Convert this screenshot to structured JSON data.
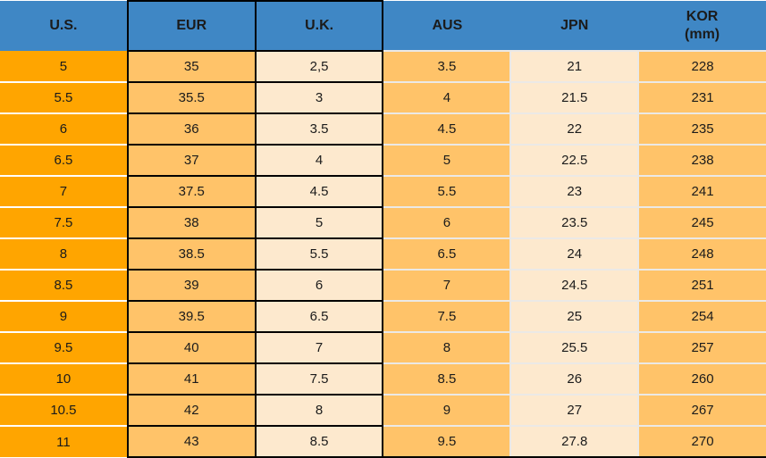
{
  "colors": {
    "header_bg": "#3F87C5",
    "us_col_bg": "#FFA500",
    "mid_orange_bg": "#FFC369",
    "cream_bg": "#FDE9CE",
    "grid_line": "#EBE9E6",
    "border_black": "#000000"
  },
  "table": {
    "columns": [
      {
        "key": "us",
        "label": "U.S."
      },
      {
        "key": "eur",
        "label": "EUR"
      },
      {
        "key": "uk",
        "label": "U.K."
      },
      {
        "key": "aus",
        "label": "AUS"
      },
      {
        "key": "jpn",
        "label": "JPN"
      },
      {
        "key": "kor",
        "label": "KOR\n(mm)"
      }
    ],
    "rows": [
      {
        "us": "5",
        "eur": "35",
        "uk": "2,5",
        "aus": "3.5",
        "jpn": "21",
        "kor": "228"
      },
      {
        "us": "5.5",
        "eur": "35.5",
        "uk": "3",
        "aus": "4",
        "jpn": "21.5",
        "kor": "231"
      },
      {
        "us": "6",
        "eur": "36",
        "uk": "3.5",
        "aus": "4.5",
        "jpn": "22",
        "kor": "235"
      },
      {
        "us": "6.5",
        "eur": "37",
        "uk": "4",
        "aus": "5",
        "jpn": "22.5",
        "kor": "238"
      },
      {
        "us": "7",
        "eur": "37.5",
        "uk": "4.5",
        "aus": "5.5",
        "jpn": "23",
        "kor": "241"
      },
      {
        "us": "7.5",
        "eur": "38",
        "uk": "5",
        "aus": "6",
        "jpn": "23.5",
        "kor": "245"
      },
      {
        "us": "8",
        "eur": "38.5",
        "uk": "5.5",
        "aus": "6.5",
        "jpn": "24",
        "kor": "248"
      },
      {
        "us": "8.5",
        "eur": "39",
        "uk": "6",
        "aus": "7",
        "jpn": "24.5",
        "kor": "251"
      },
      {
        "us": "9",
        "eur": "39.5",
        "uk": "6.5",
        "aus": "7.5",
        "jpn": "25",
        "kor": "254"
      },
      {
        "us": "9.5",
        "eur": "40",
        "uk": "7",
        "aus": "8",
        "jpn": "25.5",
        "kor": "257"
      },
      {
        "us": "10",
        "eur": "41",
        "uk": "7.5",
        "aus": "8.5",
        "jpn": "26",
        "kor": "260"
      },
      {
        "us": "10.5",
        "eur": "42",
        "uk": "8",
        "aus": "9",
        "jpn": "27",
        "kor": "267"
      },
      {
        "us": "11",
        "eur": "43",
        "uk": "8.5",
        "aus": "9.5",
        "jpn": "27.8",
        "kor": "270"
      }
    ]
  },
  "chart_data": {
    "type": "table",
    "columns": [
      "U.S.",
      "EUR",
      "U.K.",
      "AUS",
      "JPN",
      "KOR (mm)"
    ],
    "rows": [
      [
        "5",
        "35",
        "2,5",
        "3.5",
        "21",
        "228"
      ],
      [
        "5.5",
        "35.5",
        "3",
        "4",
        "21.5",
        "231"
      ],
      [
        "6",
        "36",
        "3.5",
        "4.5",
        "22",
        "235"
      ],
      [
        "6.5",
        "37",
        "4",
        "5",
        "22.5",
        "238"
      ],
      [
        "7",
        "37.5",
        "4.5",
        "5.5",
        "23",
        "241"
      ],
      [
        "7.5",
        "38",
        "5",
        "6",
        "23.5",
        "245"
      ],
      [
        "8",
        "38.5",
        "5.5",
        "6.5",
        "24",
        "248"
      ],
      [
        "8.5",
        "39",
        "6",
        "7",
        "24.5",
        "251"
      ],
      [
        "9",
        "39.5",
        "6.5",
        "7.5",
        "25",
        "254"
      ],
      [
        "9.5",
        "40",
        "7",
        "8",
        "25.5",
        "257"
      ],
      [
        "10",
        "41",
        "7.5",
        "8.5",
        "26",
        "260"
      ],
      [
        "10.5",
        "42",
        "8",
        "9",
        "27",
        "267"
      ],
      [
        "11",
        "43",
        "8.5",
        "9.5",
        "27.8",
        "270"
      ]
    ]
  }
}
